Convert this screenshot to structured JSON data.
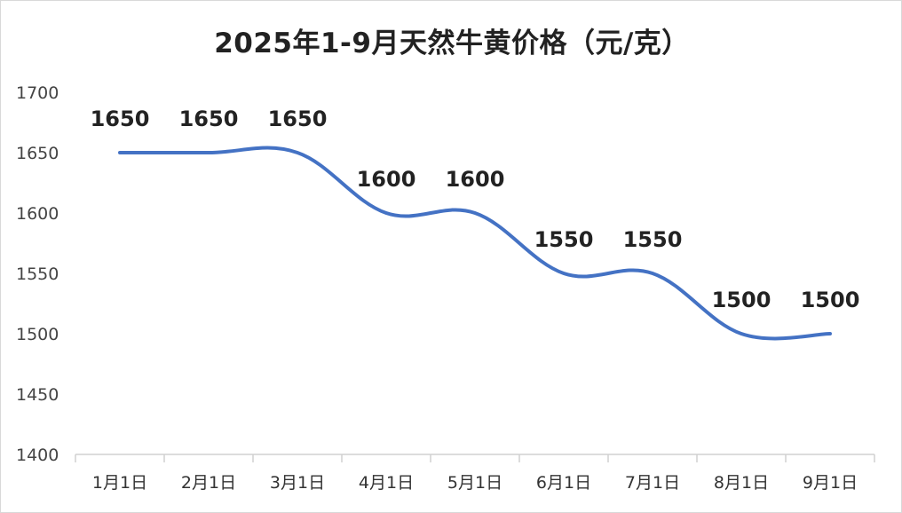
{
  "chart_data": {
    "type": "line",
    "title": "2025年1-9月天然牛黄价格（元/克）",
    "xlabel": "",
    "ylabel": "",
    "categories": [
      "1月1日",
      "2月1日",
      "3月1日",
      "4月1日",
      "5月1日",
      "6月1日",
      "7月1日",
      "8月1日",
      "9月1日"
    ],
    "series": [
      {
        "values": [
          1650,
          1650,
          1650,
          1600,
          1600,
          1550,
          1550,
          1500,
          1500
        ]
      }
    ],
    "ylim": [
      1400,
      1700
    ],
    "yticks": [
      1400,
      1450,
      1500,
      1550,
      1600,
      1650,
      1700
    ],
    "smooth": true,
    "data_labels": true,
    "grid": false,
    "legend": "none",
    "line_color": "#4472C4",
    "axis_color": "#d0d0d0"
  }
}
